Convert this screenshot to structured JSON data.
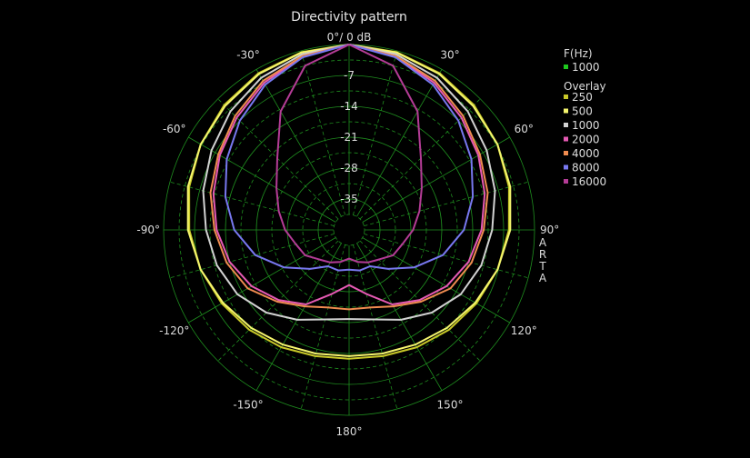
{
  "chart_data": {
    "type": "polar",
    "title": "Directivity pattern",
    "center_label": "0°/ 0 dB",
    "r_unit": "dB",
    "r_range": [
      -42,
      0
    ],
    "r_ticks": [
      -7,
      -14,
      -21,
      -28,
      -35
    ],
    "angle_ticks": [
      {
        "deg": -30,
        "label": "-30°"
      },
      {
        "deg": 30,
        "label": "30°"
      },
      {
        "deg": -60,
        "label": "-60°"
      },
      {
        "deg": 60,
        "label": "60°"
      },
      {
        "deg": -90,
        "label": "-90°"
      },
      {
        "deg": 90,
        "label": "90°"
      },
      {
        "deg": -120,
        "label": "-120°"
      },
      {
        "deg": 120,
        "label": "120°"
      },
      {
        "deg": -150,
        "label": "-150°"
      },
      {
        "deg": 150,
        "label": "150°"
      },
      {
        "deg": 180,
        "label": "180°"
      }
    ],
    "watermark": "ARTA",
    "legend": {
      "header": "F(Hz)",
      "current": {
        "name": "1000",
        "color": "#1ec81e"
      },
      "overlay_header": "Overlay"
    },
    "angles": [
      0,
      15,
      30,
      45,
      60,
      75,
      90,
      105,
      120,
      135,
      150,
      165,
      180
    ],
    "series": [
      {
        "name": "250",
        "color": "#c8c828",
        "values": [
          0,
          -0.3,
          -1.0,
          -2.0,
          -3.2,
          -4.5,
          -5.8,
          -7.2,
          -8.7,
          -10.0,
          -11.3,
          -12.4,
          -12.8
        ]
      },
      {
        "name": "500",
        "color": "#f5f56e",
        "values": [
          0,
          -0.4,
          -1.2,
          -2.3,
          -3.2,
          -4.2,
          -5.5,
          -7.2,
          -9.0,
          -10.6,
          -12.0,
          -13.0,
          -13.4
        ]
      },
      {
        "name": "1000",
        "color": "#d2d2d2",
        "values": [
          0,
          -0.8,
          -2.2,
          -4.0,
          -6.0,
          -7.8,
          -9.6,
          -11.0,
          -12.8,
          -15.5,
          -18.5,
          -21.0,
          -21.8
        ]
      },
      {
        "name": "2000",
        "color": "#e65ab4",
        "values": [
          0,
          -1.3,
          -3.5,
          -6.0,
          -8.2,
          -10.2,
          -12.0,
          -14.0,
          -16.5,
          -19.5,
          -22.5,
          -27.0,
          -29.5
        ]
      },
      {
        "name": "4000",
        "color": "#f08c50",
        "values": [
          0,
          -1.2,
          -3.0,
          -5.5,
          -7.8,
          -9.5,
          -11.5,
          -13.3,
          -15.5,
          -19.0,
          -22.0,
          -23.8,
          -24.0
        ]
      },
      {
        "name": "8000",
        "color": "#7878f0",
        "values": [
          0,
          -1.5,
          -4.0,
          -7.0,
          -10.0,
          -13.0,
          -16.0,
          -20.0,
          -25.0,
          -29.5,
          -32.5,
          -32.5,
          -33.0
        ]
      },
      {
        "name": "16000",
        "color": "#b43c96",
        "values": [
          0,
          -3.5,
          -11.0,
          -19.0,
          -23.0,
          -25.5,
          -27.5,
          -29.5,
          -30.5,
          -32.5,
          -33.5,
          -34.5,
          -35.5
        ]
      }
    ]
  }
}
